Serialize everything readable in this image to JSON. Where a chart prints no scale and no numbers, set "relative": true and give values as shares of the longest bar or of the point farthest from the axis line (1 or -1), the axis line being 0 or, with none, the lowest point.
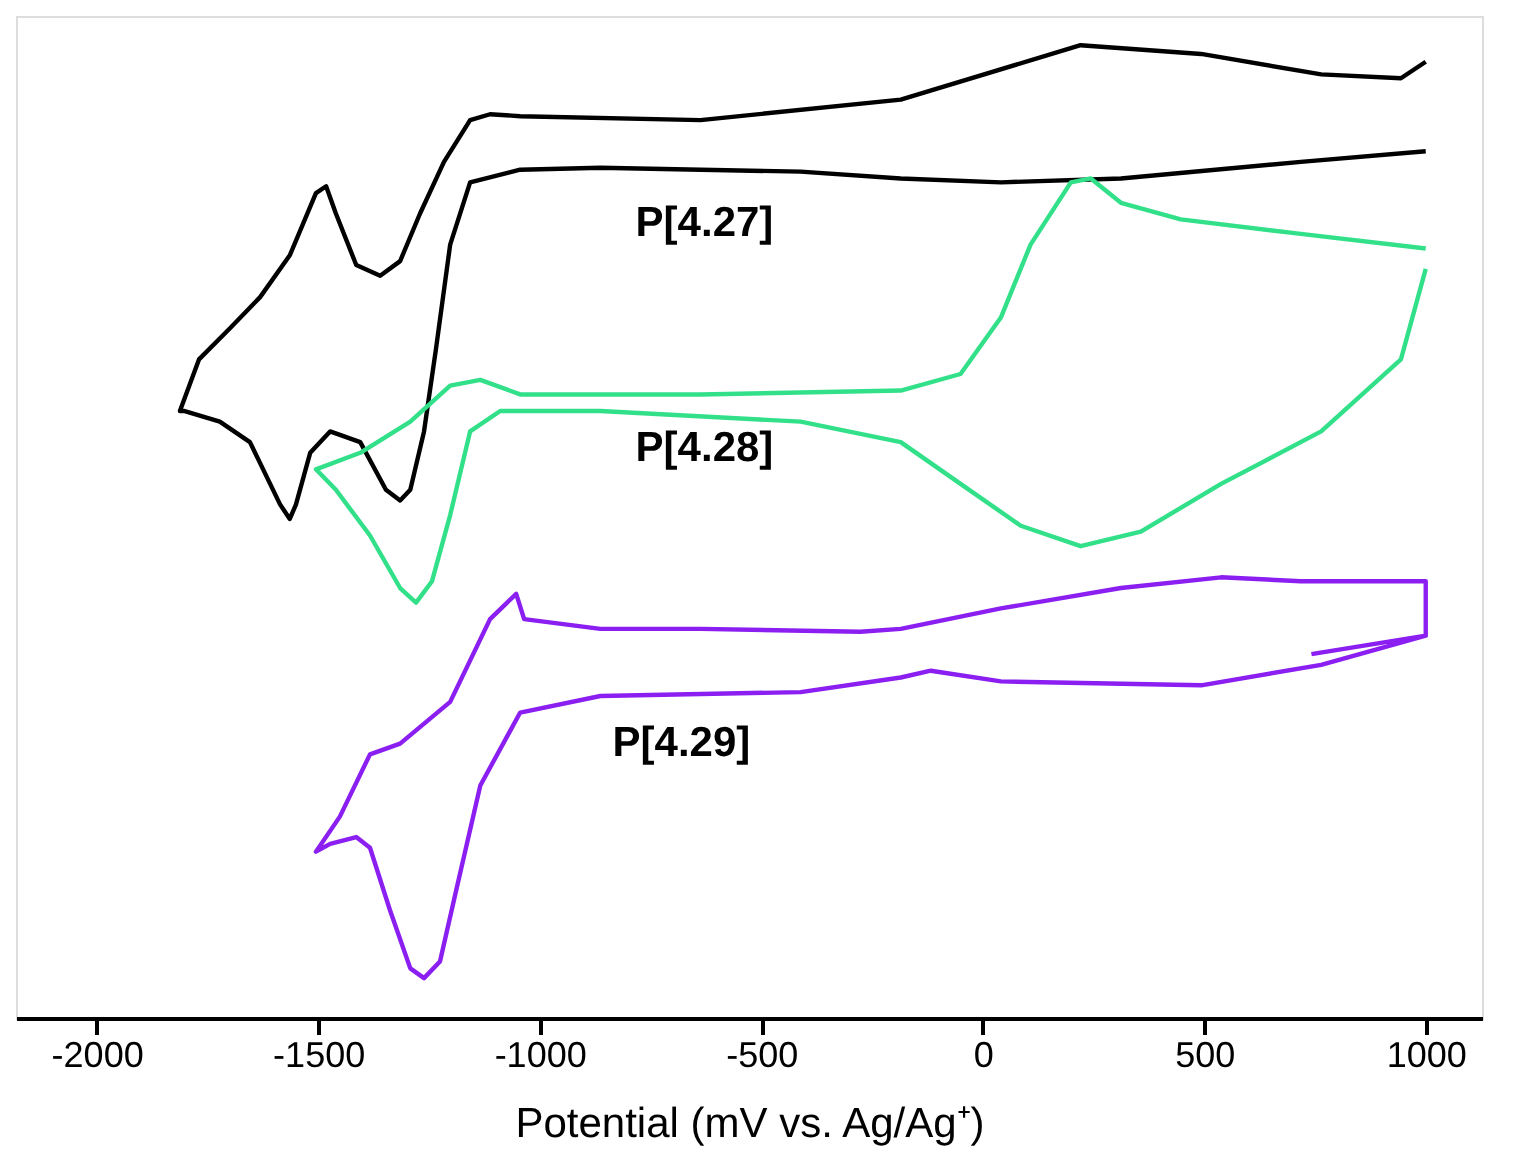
{
  "chart_data": {
    "type": "line",
    "xlabel": "Potential (mV vs. Ag/Ag⁺)",
    "relative": true,
    "xlim": [
      -2182,
      1127
    ],
    "xticks": [
      -2000,
      -1500,
      -1000,
      -500,
      0,
      500,
      1000
    ],
    "grid": false,
    "legend": false,
    "marker": "none",
    "line_style": "solid",
    "series": [
      {
        "name": "P[4.27]",
        "color": "#000000",
        "x": [
          1000,
          718,
          312,
          41,
          -185,
          -411,
          -863,
          -1044,
          -1157,
          -1202,
          -1234,
          -1261,
          -1292,
          -1315,
          -1347,
          -1405,
          -1473,
          -1518,
          -1550,
          -1564,
          -1586,
          -1654,
          -1722,
          -1803,
          -1812,
          -1769,
          -1699,
          -1631,
          -1564,
          -1505,
          -1482,
          -1460,
          -1414,
          -1360,
          -1315,
          -1270,
          -1216,
          -1157,
          -1112,
          -1044,
          -637,
          -185,
          221,
          493,
          764,
          944,
          1000
        ],
        "values": [
          0.891,
          0.88,
          0.863,
          0.859,
          0.863,
          0.87,
          0.874,
          0.872,
          0.859,
          0.795,
          0.688,
          0.603,
          0.543,
          0.532,
          0.543,
          0.592,
          0.603,
          0.581,
          0.528,
          0.513,
          0.528,
          0.592,
          0.613,
          0.624,
          0.624,
          0.677,
          0.709,
          0.741,
          0.784,
          0.848,
          0.855,
          0.827,
          0.774,
          0.763,
          0.778,
          0.827,
          0.88,
          0.923,
          0.929,
          0.927,
          0.923,
          0.944,
          1.0,
          0.991,
          0.97,
          0.966,
          0.983
        ]
      },
      {
        "name": "P[4.28]",
        "color": "#33e08a",
        "x": [
          1000,
          718,
          447,
          312,
          244,
          199,
          108,
          41,
          -50,
          -185,
          -637,
          -1044,
          -1134,
          -1202,
          -1292,
          -1405,
          -1505,
          -1460,
          -1383,
          -1315,
          -1279,
          -1243,
          -1202,
          -1157,
          -1089,
          -863,
          -411,
          -185,
          -50,
          86,
          221,
          357,
          538,
          764,
          944,
          1000
        ],
        "values": [
          0.791,
          0.806,
          0.821,
          0.838,
          0.863,
          0.859,
          0.795,
          0.72,
          0.662,
          0.645,
          0.641,
          0.641,
          0.656,
          0.65,
          0.613,
          0.581,
          0.564,
          0.543,
          0.496,
          0.442,
          0.427,
          0.449,
          0.517,
          0.603,
          0.624,
          0.624,
          0.613,
          0.592,
          0.549,
          0.506,
          0.485,
          0.5,
          0.549,
          0.603,
          0.677,
          0.77
        ]
      },
      {
        "name": "P[4.29]",
        "color": "#8b1ef0",
        "x": [
          1000,
          1000,
          718,
          538,
          312,
          41,
          -185,
          -276,
          -637,
          -863,
          -1035,
          -1053,
          -1112,
          -1202,
          -1315,
          -1383,
          -1451,
          -1505,
          -1473,
          -1414,
          -1383,
          -1338,
          -1292,
          -1261,
          -1225,
          -1188,
          -1134,
          -1044,
          -863,
          -411,
          -185,
          -117,
          41,
          493,
          764,
          1000,
          742
        ],
        "values": [
          0.393,
          0.449,
          0.449,
          0.453,
          0.442,
          0.421,
          0.4,
          0.397,
          0.4,
          0.4,
          0.41,
          0.436,
          0.41,
          0.325,
          0.282,
          0.271,
          0.207,
          0.171,
          0.179,
          0.186,
          0.175,
          0.111,
          0.051,
          0.041,
          0.058,
          0.132,
          0.239,
          0.314,
          0.331,
          0.335,
          0.35,
          0.357,
          0.346,
          0.342,
          0.363,
          0.393,
          0.374
        ]
      }
    ]
  }
}
